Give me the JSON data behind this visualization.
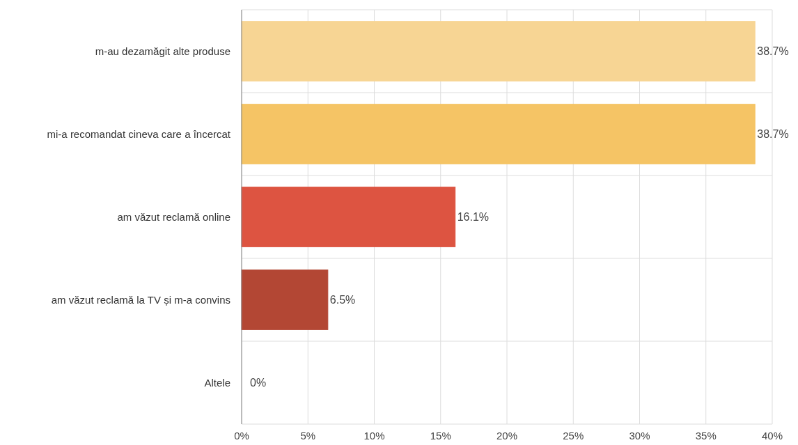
{
  "chart_data": {
    "type": "bar",
    "orientation": "horizontal",
    "categories": [
      "m-au dezamăgit alte produse",
      "mi-a recomandat cineva care a încercat",
      "am văzut reclamă online",
      "am văzut reclamă la TV și m-a convins",
      "Altele"
    ],
    "values": [
      38.7,
      38.7,
      16.1,
      6.5,
      0
    ],
    "colors": [
      "#f7d594",
      "#f5c465",
      "#dd5441",
      "#b34734",
      "#8c2a20"
    ],
    "value_labels": [
      "38.7%",
      "38.7%",
      "16.1%",
      "6.5%",
      "0%"
    ],
    "xlim": [
      0,
      40
    ],
    "xticks": [
      {
        "value": 0,
        "label": "0%"
      },
      {
        "value": 5,
        "label": "5%"
      },
      {
        "value": 10,
        "label": "10%"
      },
      {
        "value": 15,
        "label": "15%"
      },
      {
        "value": 20,
        "label": "20%"
      },
      {
        "value": 25,
        "label": "25%"
      },
      {
        "value": 30,
        "label": "30%"
      },
      {
        "value": 35,
        "label": "35%"
      },
      {
        "value": 40,
        "label": "40%"
      }
    ],
    "grid": true
  }
}
